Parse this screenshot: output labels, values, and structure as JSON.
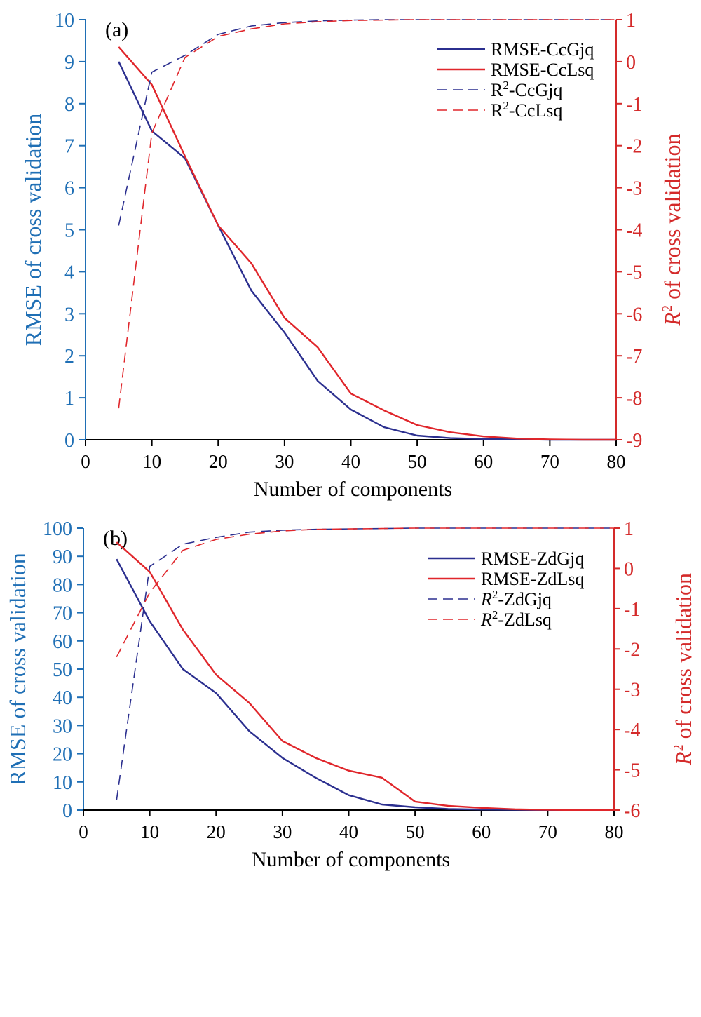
{
  "colors": {
    "left_axis": "#1f6fb5",
    "right_axis": "#d42a2a",
    "gjq_series": "#2b2f8f",
    "lsq_series": "#e0262b",
    "axis_black": "#000000"
  },
  "chart_data": [
    {
      "type": "line",
      "panel_label": "(a)",
      "xlabel": "Number of components",
      "ylabel_left": "RMSE of cross validation",
      "ylabel_right_prefix": "R",
      "ylabel_right_sup": "2",
      "ylabel_right_suffix": " of cross validation",
      "xlim": [
        0,
        80
      ],
      "x_ticks": [
        0,
        10,
        20,
        30,
        40,
        50,
        60,
        70,
        80
      ],
      "ylim_left": [
        0,
        10
      ],
      "y_left_ticks": [
        0,
        1,
        2,
        3,
        4,
        5,
        6,
        7,
        8,
        9,
        10
      ],
      "ylim_right": [
        -9,
        1
      ],
      "y_right_ticks": [
        -9,
        -8,
        -7,
        -6,
        -5,
        -4,
        -3,
        -2,
        -1,
        0,
        1
      ],
      "grid": false,
      "legend_position": "top-right",
      "x": [
        5,
        10,
        15,
        20,
        25,
        30,
        35,
        40,
        45,
        50,
        55,
        60,
        65,
        70,
        75,
        80
      ],
      "series": [
        {
          "name": "RMSE-CcGjq",
          "legend_prefix": "RMSE-CcGjq",
          "legend_sup": "",
          "legend_suffix": "",
          "legend_italic_prefix": false,
          "axis": "left",
          "style": "solid",
          "color_key": "gjq_series",
          "values": [
            9.0,
            7.35,
            6.7,
            5.1,
            3.55,
            2.55,
            1.4,
            0.72,
            0.3,
            0.1,
            0.04,
            0.02,
            0.01,
            0.0,
            0.0,
            0.0
          ]
        },
        {
          "name": "RMSE-CcLsq",
          "legend_prefix": "RMSE-CcLsq",
          "legend_sup": "",
          "legend_suffix": "",
          "legend_italic_prefix": false,
          "axis": "left",
          "style": "solid",
          "color_key": "lsq_series",
          "values": [
            9.35,
            8.45,
            6.75,
            5.1,
            4.2,
            2.9,
            2.2,
            1.1,
            0.7,
            0.35,
            0.18,
            0.08,
            0.03,
            0.01,
            0.0,
            0.0
          ]
        },
        {
          "name": "R2-CcGjq",
          "legend_prefix": "R",
          "legend_sup": "2",
          "legend_suffix": "-CcGjq",
          "legend_italic_prefix": false,
          "axis": "right",
          "style": "dashed",
          "color_key": "gjq_series",
          "values": [
            -3.9,
            -0.25,
            0.15,
            0.65,
            0.85,
            0.93,
            0.97,
            0.99,
            1.0,
            1.0,
            1.0,
            1.0,
            1.0,
            1.0,
            1.0,
            1.0
          ]
        },
        {
          "name": "R2-CcLsq",
          "legend_prefix": "R",
          "legend_sup": "2",
          "legend_suffix": "-CcLsq",
          "legend_italic_prefix": false,
          "axis": "right",
          "style": "dashed",
          "color_key": "lsq_series",
          "values": [
            -8.25,
            -1.7,
            0.1,
            0.6,
            0.78,
            0.9,
            0.95,
            0.98,
            0.99,
            1.0,
            1.0,
            1.0,
            1.0,
            1.0,
            1.0,
            1.0
          ]
        }
      ]
    },
    {
      "type": "line",
      "panel_label": "(b)",
      "xlabel": "Number of components",
      "ylabel_left": "RMSE of cross validation",
      "ylabel_right_prefix": "R",
      "ylabel_right_sup": "2",
      "ylabel_right_suffix": " of cross validation",
      "xlim": [
        0,
        80
      ],
      "x_ticks": [
        0,
        10,
        20,
        30,
        40,
        50,
        60,
        70,
        80
      ],
      "ylim_left": [
        0,
        100
      ],
      "y_left_ticks": [
        0,
        10,
        20,
        30,
        40,
        50,
        60,
        70,
        80,
        90,
        100
      ],
      "ylim_right": [
        -6,
        1
      ],
      "y_right_ticks": [
        -6,
        -5,
        -4,
        -3,
        -2,
        -1,
        0,
        1
      ],
      "grid": false,
      "legend_position": "top-right",
      "x": [
        5,
        10,
        15,
        20,
        25,
        30,
        35,
        40,
        45,
        50,
        55,
        60,
        65,
        70,
        75,
        80
      ],
      "series": [
        {
          "name": "RMSE-ZdGjq",
          "legend_prefix": "RMSE-ZdGjq",
          "legend_sup": "",
          "legend_suffix": "",
          "legend_italic_prefix": false,
          "axis": "left",
          "style": "solid",
          "color_key": "gjq_series",
          "values": [
            89,
            67,
            50,
            41.5,
            28,
            18.5,
            11.5,
            5.3,
            2,
            1,
            0.4,
            0.2,
            0.1,
            0,
            0,
            0
          ]
        },
        {
          "name": "RMSE-ZdLsq",
          "legend_prefix": "RMSE-ZdLsq",
          "legend_sup": "",
          "legend_suffix": "",
          "legend_italic_prefix": false,
          "axis": "left",
          "style": "solid",
          "color_key": "lsq_series",
          "values": [
            95,
            84.5,
            64,
            48,
            38,
            24.5,
            18.5,
            14,
            11.5,
            3,
            1.5,
            0.8,
            0.3,
            0.1,
            0,
            0
          ]
        },
        {
          "name": "R2-ZdGjq",
          "legend_prefix": "R",
          "legend_sup": "2",
          "legend_suffix": "-ZdGjq",
          "legend_italic_prefix": true,
          "axis": "right",
          "style": "dashed",
          "color_key": "gjq_series",
          "values": [
            -5.75,
            0.05,
            0.6,
            0.77,
            0.9,
            0.95,
            0.97,
            0.98,
            0.99,
            1.0,
            1.0,
            1.0,
            1.0,
            1.0,
            1.0,
            1.0
          ]
        },
        {
          "name": "R2-ZdLsq",
          "legend_prefix": "R",
          "legend_sup": "2",
          "legend_suffix": "-ZdLsq",
          "legend_italic_prefix": true,
          "axis": "right",
          "style": "dashed",
          "color_key": "lsq_series",
          "values": [
            -2.2,
            -0.6,
            0.45,
            0.72,
            0.85,
            0.93,
            0.97,
            0.98,
            0.99,
            1.0,
            1.0,
            1.0,
            1.0,
            1.0,
            1.0,
            1.0
          ]
        }
      ]
    }
  ]
}
